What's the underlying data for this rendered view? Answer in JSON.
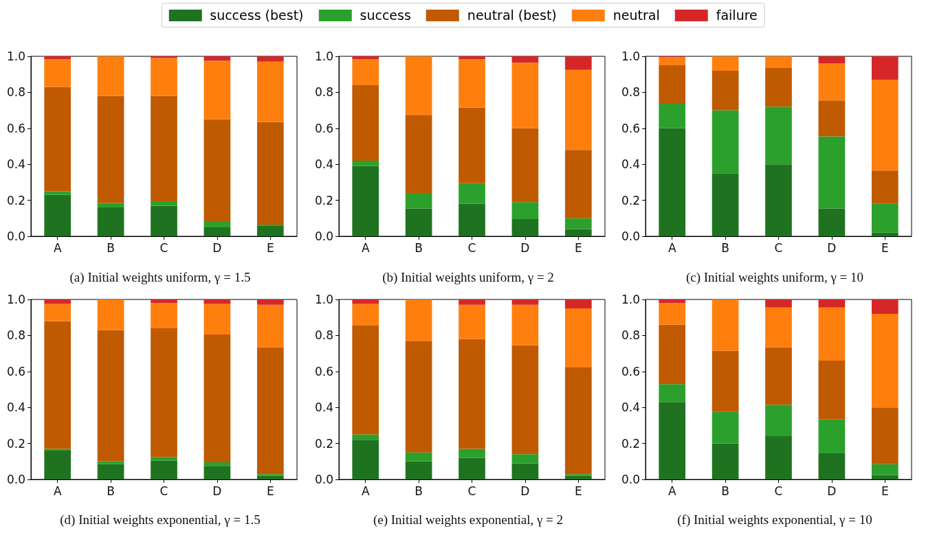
{
  "chart_data": [
    {
      "type": "bar",
      "title": "(a) Initial weights uniform, γ = 1.5",
      "categories": [
        "A",
        "B",
        "C",
        "D",
        "E"
      ],
      "stacked": true,
      "legend": "top",
      "ylim": [
        0,
        1
      ],
      "yticks": [
        {
          "value": 0,
          "label": "0.0"
        },
        {
          "value": 0.2,
          "label": "0.2"
        },
        {
          "value": 0.4,
          "label": "0.4"
        },
        {
          "value": 0.6,
          "label": "0.6"
        },
        {
          "value": 0.8,
          "label": "0.8"
        },
        {
          "value": 1,
          "label": "1.0"
        }
      ],
      "series": [
        {
          "name": "success (best)",
          "color": "#1f7320",
          "values": [
            0.23,
            0.16,
            0.17,
            0.05,
            0.06
          ]
        },
        {
          "name": "success",
          "color": "#2ca02c",
          "values": [
            0.02,
            0.025,
            0.025,
            0.03,
            0.005
          ]
        },
        {
          "name": "neutral (best)",
          "color": "#bf5a00",
          "values": [
            0.58,
            0.595,
            0.585,
            0.57,
            0.57
          ]
        },
        {
          "name": "neutral",
          "color": "#ff7f0e",
          "values": [
            0.155,
            0.22,
            0.21,
            0.325,
            0.335
          ]
        },
        {
          "name": "failure",
          "color": "#d62728",
          "values": [
            0.015,
            0,
            0.01,
            0.025,
            0.03
          ]
        }
      ]
    },
    {
      "type": "bar",
      "title": "(b) Initial weights uniform, γ = 2",
      "categories": [
        "A",
        "B",
        "C",
        "D",
        "E"
      ],
      "stacked": true,
      "legend": "top",
      "ylim": [
        0,
        1
      ],
      "yticks": [
        {
          "value": 0,
          "label": "0.0"
        },
        {
          "value": 0.2,
          "label": "0.2"
        },
        {
          "value": 0.4,
          "label": "0.4"
        },
        {
          "value": 0.6,
          "label": "0.6"
        },
        {
          "value": 0.8,
          "label": "0.8"
        },
        {
          "value": 1,
          "label": "1.0"
        }
      ],
      "series": [
        {
          "name": "success (best)",
          "color": "#1f7320",
          "values": [
            0.39,
            0.155,
            0.18,
            0.095,
            0.04
          ]
        },
        {
          "name": "success",
          "color": "#2ca02c",
          "values": [
            0.03,
            0.085,
            0.115,
            0.095,
            0.06
          ]
        },
        {
          "name": "neutral (best)",
          "color": "#bf5a00",
          "values": [
            0.42,
            0.435,
            0.42,
            0.41,
            0.38
          ]
        },
        {
          "name": "neutral",
          "color": "#ff7f0e",
          "values": [
            0.145,
            0.325,
            0.27,
            0.365,
            0.445
          ]
        },
        {
          "name": "failure",
          "color": "#d62728",
          "values": [
            0.015,
            0,
            0.015,
            0.035,
            0.075
          ]
        }
      ]
    },
    {
      "type": "bar",
      "title": "(c) Initial weights uniform, γ = 10",
      "categories": [
        "A",
        "B",
        "C",
        "D",
        "E"
      ],
      "stacked": true,
      "legend": "top",
      "ylim": [
        0,
        1
      ],
      "yticks": [
        {
          "value": 0,
          "label": "0.0"
        },
        {
          "value": 0.2,
          "label": "0.2"
        },
        {
          "value": 0.4,
          "label": "0.4"
        },
        {
          "value": 0.6,
          "label": "0.6"
        },
        {
          "value": 0.8,
          "label": "0.8"
        },
        {
          "value": 1,
          "label": "1.0"
        }
      ],
      "series": [
        {
          "name": "success (best)",
          "color": "#1f7320",
          "values": [
            0.6,
            0.35,
            0.4,
            0.155,
            0.02
          ]
        },
        {
          "name": "success",
          "color": "#2ca02c",
          "values": [
            0.14,
            0.35,
            0.32,
            0.4,
            0.16
          ]
        },
        {
          "name": "neutral (best)",
          "color": "#bf5a00",
          "values": [
            0.21,
            0.22,
            0.215,
            0.2,
            0.185
          ]
        },
        {
          "name": "neutral",
          "color": "#ff7f0e",
          "values": [
            0.045,
            0.08,
            0.065,
            0.205,
            0.505
          ]
        },
        {
          "name": "failure",
          "color": "#d62728",
          "values": [
            0.005,
            0,
            0,
            0.04,
            0.13
          ]
        }
      ]
    },
    {
      "type": "bar",
      "title": "(d) Initial weights exponential, γ = 1.5",
      "categories": [
        "A",
        "B",
        "C",
        "D",
        "E"
      ],
      "stacked": true,
      "legend": "top",
      "ylim": [
        0,
        1
      ],
      "yticks": [
        {
          "value": 0,
          "label": "0.0"
        },
        {
          "value": 0.2,
          "label": "0.2"
        },
        {
          "value": 0.4,
          "label": "0.4"
        },
        {
          "value": 0.6,
          "label": "0.6"
        },
        {
          "value": 0.8,
          "label": "0.8"
        },
        {
          "value": 1,
          "label": "1.0"
        }
      ],
      "series": [
        {
          "name": "success (best)",
          "color": "#1f7320",
          "values": [
            0.16,
            0.085,
            0.105,
            0.075,
            0.02
          ]
        },
        {
          "name": "success",
          "color": "#2ca02c",
          "values": [
            0.01,
            0.015,
            0.02,
            0.02,
            0.01
          ]
        },
        {
          "name": "neutral (best)",
          "color": "#bf5a00",
          "values": [
            0.71,
            0.73,
            0.715,
            0.71,
            0.705
          ]
        },
        {
          "name": "neutral",
          "color": "#ff7f0e",
          "values": [
            0.095,
            0.17,
            0.14,
            0.17,
            0.235
          ]
        },
        {
          "name": "failure",
          "color": "#d62728",
          "values": [
            0.025,
            0,
            0.02,
            0.025,
            0.03
          ]
        }
      ]
    },
    {
      "type": "bar",
      "title": "(e) Initial weights exponential, γ = 2",
      "categories": [
        "A",
        "B",
        "C",
        "D",
        "E"
      ],
      "stacked": true,
      "legend": "top",
      "ylim": [
        0,
        1
      ],
      "yticks": [
        {
          "value": 0,
          "label": "0.0"
        },
        {
          "value": 0.2,
          "label": "0.2"
        },
        {
          "value": 0.4,
          "label": "0.4"
        },
        {
          "value": 0.6,
          "label": "0.6"
        },
        {
          "value": 0.8,
          "label": "0.8"
        },
        {
          "value": 1,
          "label": "1.0"
        }
      ],
      "series": [
        {
          "name": "success (best)",
          "color": "#1f7320",
          "values": [
            0.22,
            0.1,
            0.12,
            0.09,
            0.02
          ]
        },
        {
          "name": "success",
          "color": "#2ca02c",
          "values": [
            0.03,
            0.05,
            0.05,
            0.05,
            0.01
          ]
        },
        {
          "name": "neutral (best)",
          "color": "#bf5a00",
          "values": [
            0.605,
            0.62,
            0.61,
            0.605,
            0.595
          ]
        },
        {
          "name": "neutral",
          "color": "#ff7f0e",
          "values": [
            0.12,
            0.23,
            0.19,
            0.225,
            0.325
          ]
        },
        {
          "name": "failure",
          "color": "#d62728",
          "values": [
            0.025,
            0,
            0.03,
            0.03,
            0.05
          ]
        }
      ]
    },
    {
      "type": "bar",
      "title": "(f) Initial weights exponential, γ = 10",
      "categories": [
        "A",
        "B",
        "C",
        "D",
        "E"
      ],
      "stacked": true,
      "legend": "top",
      "ylim": [
        0,
        1
      ],
      "yticks": [
        {
          "value": 0,
          "label": "0.0"
        },
        {
          "value": 0.2,
          "label": "0.2"
        },
        {
          "value": 0.4,
          "label": "0.4"
        },
        {
          "value": 0.6,
          "label": "0.6"
        },
        {
          "value": 0.8,
          "label": "0.8"
        },
        {
          "value": 1,
          "label": "1.0"
        }
      ],
      "series": [
        {
          "name": "success (best)",
          "color": "#1f7320",
          "values": [
            0.43,
            0.2,
            0.24,
            0.145,
            0.025
          ]
        },
        {
          "name": "success",
          "color": "#2ca02c",
          "values": [
            0.1,
            0.175,
            0.175,
            0.19,
            0.06
          ]
        },
        {
          "name": "neutral (best)",
          "color": "#bf5a00",
          "values": [
            0.33,
            0.34,
            0.32,
            0.325,
            0.315
          ]
        },
        {
          "name": "neutral",
          "color": "#ff7f0e",
          "values": [
            0.12,
            0.285,
            0.22,
            0.295,
            0.52
          ]
        },
        {
          "name": "failure",
          "color": "#d62728",
          "values": [
            0.02,
            0,
            0.045,
            0.045,
            0.08
          ]
        }
      ]
    }
  ]
}
